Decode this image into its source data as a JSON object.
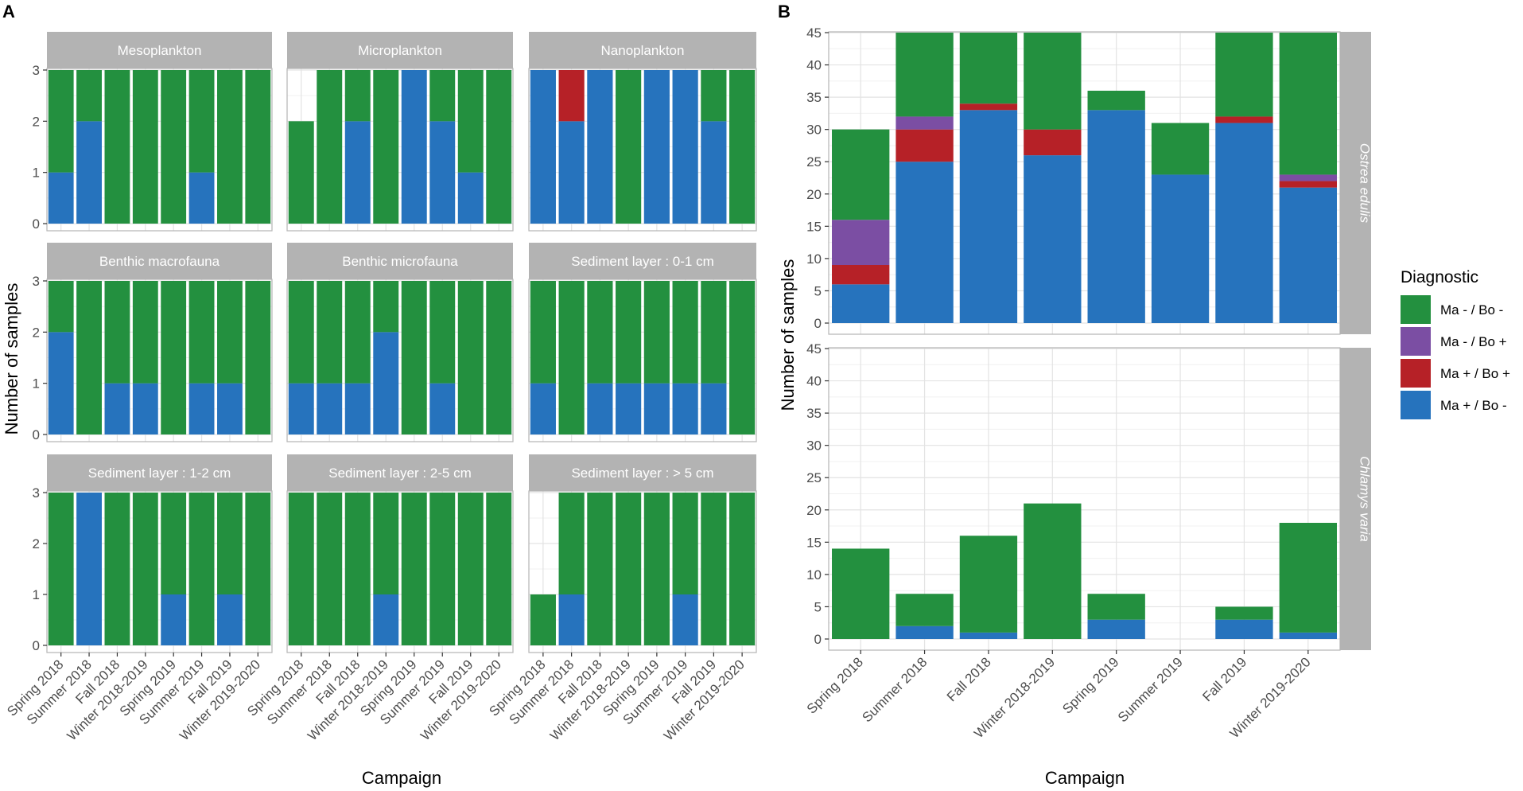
{
  "figure": {
    "panel_a_label": "A",
    "panel_b_label": "B",
    "panel_a_ylabel": "Number of samples",
    "panel_a_xlabel": "Campaign",
    "panel_b_ylabel": "Number of samples",
    "panel_b_xlabel": "Campaign"
  },
  "legend": {
    "title": "Diagnostic",
    "items": [
      {
        "label": "Ma - / Bo -",
        "color": "#23903f"
      },
      {
        "label": "Ma - / Bo +",
        "color": "#7b4ea3"
      },
      {
        "label": "Ma + / Bo +",
        "color": "#b62127"
      },
      {
        "label": "Ma + / Bo -",
        "color": "#2673bd"
      }
    ]
  },
  "chart_data": [
    {
      "type": "bar",
      "stacked": true,
      "title": "Panel A",
      "xlabel": "Campaign",
      "ylabel": "Number of samples",
      "ylim": [
        0,
        3
      ],
      "yticks": [
        0,
        1,
        2,
        3
      ],
      "categories": [
        "Spring 2018",
        "Summer 2018",
        "Fall 2018",
        "Winter 2018-2019",
        "Spring 2019",
        "Summer 2019",
        "Fall 2019",
        "Winter 2019-2020"
      ],
      "stack_order_bottom_to_top": [
        "Ma + / Bo -",
        "Ma + / Bo +",
        "Ma - / Bo +",
        "Ma - / Bo -"
      ],
      "facets": [
        {
          "name": "Mesoplankton",
          "series": [
            {
              "name": "Ma + / Bo -",
              "values": [
                1,
                2,
                0,
                0,
                0,
                1,
                0,
                0
              ]
            },
            {
              "name": "Ma + / Bo +",
              "values": [
                0,
                0,
                0,
                0,
                0,
                0,
                0,
                0
              ]
            },
            {
              "name": "Ma - / Bo +",
              "values": [
                0,
                0,
                0,
                0,
                0,
                0,
                0,
                0
              ]
            },
            {
              "name": "Ma - / Bo -",
              "values": [
                2,
                1,
                3,
                3,
                3,
                2,
                3,
                3
              ]
            }
          ]
        },
        {
          "name": "Microplankton",
          "series": [
            {
              "name": "Ma + / Bo -",
              "values": [
                0,
                0,
                2,
                0,
                3,
                2,
                1,
                0
              ]
            },
            {
              "name": "Ma + / Bo +",
              "values": [
                0,
                0,
                0,
                0,
                0,
                0,
                0,
                0
              ]
            },
            {
              "name": "Ma - / Bo +",
              "values": [
                0,
                0,
                0,
                0,
                0,
                0,
                0,
                0
              ]
            },
            {
              "name": "Ma - / Bo -",
              "values": [
                2,
                3,
                1,
                3,
                0,
                1,
                2,
                3
              ]
            }
          ]
        },
        {
          "name": "Nanoplankton",
          "series": [
            {
              "name": "Ma + / Bo -",
              "values": [
                3,
                2,
                3,
                0,
                3,
                3,
                2,
                0
              ]
            },
            {
              "name": "Ma + / Bo +",
              "values": [
                0,
                1,
                0,
                0,
                0,
                0,
                0,
                0
              ]
            },
            {
              "name": "Ma - / Bo +",
              "values": [
                0,
                0,
                0,
                0,
                0,
                0,
                0,
                0
              ]
            },
            {
              "name": "Ma - / Bo -",
              "values": [
                0,
                0,
                0,
                3,
                0,
                0,
                1,
                3
              ]
            }
          ]
        },
        {
          "name": "Benthic macrofauna",
          "series": [
            {
              "name": "Ma + / Bo -",
              "values": [
                2,
                0,
                1,
                1,
                0,
                1,
                1,
                0
              ]
            },
            {
              "name": "Ma + / Bo +",
              "values": [
                0,
                0,
                0,
                0,
                0,
                0,
                0,
                0
              ]
            },
            {
              "name": "Ma - / Bo +",
              "values": [
                0,
                0,
                0,
                0,
                0,
                0,
                0,
                0
              ]
            },
            {
              "name": "Ma - / Bo -",
              "values": [
                1,
                3,
                2,
                2,
                3,
                2,
                2,
                3
              ]
            }
          ]
        },
        {
          "name": "Benthic microfauna",
          "series": [
            {
              "name": "Ma + / Bo -",
              "values": [
                1,
                1,
                1,
                2,
                0,
                1,
                0,
                0
              ]
            },
            {
              "name": "Ma + / Bo +",
              "values": [
                0,
                0,
                0,
                0,
                0,
                0,
                0,
                0
              ]
            },
            {
              "name": "Ma - / Bo +",
              "values": [
                0,
                0,
                0,
                0,
                0,
                0,
                0,
                0
              ]
            },
            {
              "name": "Ma - / Bo -",
              "values": [
                2,
                2,
                2,
                1,
                3,
                2,
                3,
                3
              ]
            }
          ]
        },
        {
          "name": "Sediment layer : 0-1 cm",
          "series": [
            {
              "name": "Ma + / Bo -",
              "values": [
                1,
                0,
                1,
                1,
                1,
                1,
                1,
                0
              ]
            },
            {
              "name": "Ma + / Bo +",
              "values": [
                0,
                0,
                0,
                0,
                0,
                0,
                0,
                0
              ]
            },
            {
              "name": "Ma - / Bo +",
              "values": [
                0,
                0,
                0,
                0,
                0,
                0,
                0,
                0
              ]
            },
            {
              "name": "Ma - / Bo -",
              "values": [
                2,
                3,
                2,
                2,
                2,
                2,
                2,
                3
              ]
            }
          ]
        },
        {
          "name": "Sediment layer : 1-2 cm",
          "series": [
            {
              "name": "Ma + / Bo -",
              "values": [
                0,
                3,
                0,
                0,
                1,
                0,
                1,
                0
              ]
            },
            {
              "name": "Ma + / Bo +",
              "values": [
                0,
                0,
                0,
                0,
                0,
                0,
                0,
                0
              ]
            },
            {
              "name": "Ma - / Bo +",
              "values": [
                0,
                0,
                0,
                0,
                0,
                0,
                0,
                0
              ]
            },
            {
              "name": "Ma - / Bo -",
              "values": [
                3,
                0,
                3,
                3,
                2,
                3,
                2,
                3
              ]
            }
          ]
        },
        {
          "name": "Sediment layer : 2-5 cm",
          "series": [
            {
              "name": "Ma + / Bo -",
              "values": [
                0,
                0,
                0,
                1,
                0,
                0,
                0,
                0
              ]
            },
            {
              "name": "Ma + / Bo +",
              "values": [
                0,
                0,
                0,
                0,
                0,
                0,
                0,
                0
              ]
            },
            {
              "name": "Ma - / Bo +",
              "values": [
                0,
                0,
                0,
                0,
                0,
                0,
                0,
                0
              ]
            },
            {
              "name": "Ma - / Bo -",
              "values": [
                3,
                3,
                3,
                2,
                3,
                3,
                3,
                3
              ]
            }
          ]
        },
        {
          "name": "Sediment layer : > 5 cm",
          "series": [
            {
              "name": "Ma + / Bo -",
              "values": [
                0,
                1,
                0,
                0,
                0,
                1,
                0,
                0
              ]
            },
            {
              "name": "Ma + / Bo +",
              "values": [
                0,
                0,
                0,
                0,
                0,
                0,
                0,
                0
              ]
            },
            {
              "name": "Ma - / Bo +",
              "values": [
                0,
                0,
                0,
                0,
                0,
                0,
                0,
                0
              ]
            },
            {
              "name": "Ma - / Bo -",
              "values": [
                1,
                2,
                3,
                3,
                3,
                2,
                3,
                3
              ]
            }
          ]
        }
      ]
    },
    {
      "type": "bar",
      "stacked": true,
      "title": "Panel B",
      "xlabel": "Campaign",
      "ylabel": "Number of samples",
      "ylim": [
        0,
        45
      ],
      "yticks": [
        0,
        5,
        10,
        15,
        20,
        25,
        30,
        35,
        40,
        45
      ],
      "categories": [
        "Spring 2018",
        "Summer 2018",
        "Fall 2018",
        "Winter 2018-2019",
        "Spring 2019",
        "Summer 2019",
        "Fall 2019",
        "Winter 2019-2020"
      ],
      "stack_order_bottom_to_top": [
        "Ma + / Bo -",
        "Ma + / Bo +",
        "Ma - / Bo +",
        "Ma - / Bo -"
      ],
      "facets": [
        {
          "name": "Ostrea edulis",
          "series": [
            {
              "name": "Ma + / Bo -",
              "values": [
                6,
                25,
                33,
                26,
                33,
                23,
                31,
                21
              ]
            },
            {
              "name": "Ma + / Bo +",
              "values": [
                3,
                5,
                1,
                4,
                0,
                0,
                1,
                1
              ]
            },
            {
              "name": "Ma - / Bo +",
              "values": [
                7,
                2,
                0,
                0,
                0,
                0,
                0,
                1
              ]
            },
            {
              "name": "Ma - / Bo -",
              "values": [
                14,
                13,
                11,
                15,
                3,
                8,
                13,
                22
              ]
            }
          ]
        },
        {
          "name": "Chlamys varia",
          "series": [
            {
              "name": "Ma + / Bo -",
              "values": [
                0,
                2,
                1,
                0,
                3,
                0,
                3,
                1
              ]
            },
            {
              "name": "Ma + / Bo +",
              "values": [
                0,
                0,
                0,
                0,
                0,
                0,
                0,
                0
              ]
            },
            {
              "name": "Ma - / Bo +",
              "values": [
                0,
                0,
                0,
                0,
                0,
                0,
                0,
                0
              ]
            },
            {
              "name": "Ma - / Bo -",
              "values": [
                14,
                5,
                15,
                21,
                4,
                0,
                2,
                17
              ]
            }
          ]
        }
      ]
    }
  ]
}
